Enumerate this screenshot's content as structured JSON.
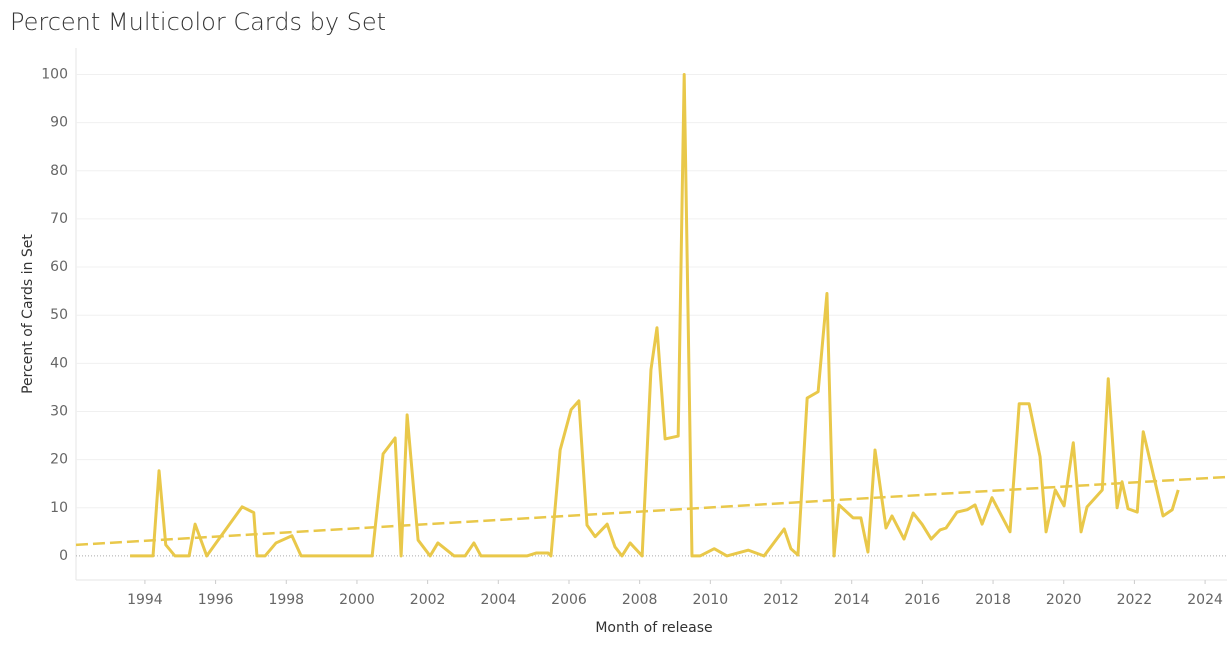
{
  "chart_data": {
    "type": "line",
    "title": "Percent Multicolor Cards by Set",
    "x_label": "Month of release",
    "y_label": "Percent of Cards in Set",
    "x": [
      1993.58,
      1994.23,
      1994.4,
      1994.59,
      1994.85,
      1995.25,
      1995.42,
      1995.75,
      1996.75,
      1997.08,
      1997.17,
      1997.4,
      1997.71,
      1998.16,
      1998.42,
      2000.43,
      2000.74,
      2001.08,
      2001.25,
      2001.42,
      2001.73,
      2002.07,
      2002.29,
      2002.75,
      2003.06,
      2003.31,
      2003.51,
      2004.81,
      2005.07,
      2005.41,
      2005.49,
      2005.75,
      2006.06,
      2006.28,
      2006.51,
      2006.74,
      2007.08,
      2007.3,
      2007.5,
      2007.73,
      2008.07,
      2008.32,
      2008.49,
      2008.72,
      2009.09,
      2009.26,
      2009.48,
      2009.71,
      2010.11,
      2010.47,
      2011.07,
      2011.52,
      2012.09,
      2012.28,
      2012.48,
      2012.74,
      2013.05,
      2013.3,
      2013.5,
      2013.64,
      2014.04,
      2014.26,
      2014.46,
      2014.66,
      2014.97,
      2015.14,
      2015.48,
      2015.74,
      2015.99,
      2016.25,
      2016.5,
      2016.67,
      2016.98,
      2017.27,
      2017.49,
      2017.69,
      2017.97,
      2018.48,
      2018.74,
      2019.02,
      2019.33,
      2019.5,
      2019.76,
      2020.01,
      2020.27,
      2020.49,
      2020.66,
      2021.09,
      2021.26,
      2021.51,
      2021.65,
      2021.82,
      2022.08,
      2022.25,
      2022.81,
      2023.07,
      2023.24
    ],
    "series": [
      {
        "color": "#e9c84a",
        "values": [
          0,
          0,
          17.7,
          2.3,
          0,
          0,
          6.6,
          0,
          10.2,
          9,
          0,
          0,
          2.7,
          4.2,
          0,
          0,
          21.2,
          24.5,
          0,
          29.3,
          3.3,
          0,
          2.7,
          0,
          0,
          2.7,
          0,
          0,
          0.6,
          0.6,
          0,
          22,
          30.4,
          32.2,
          6.4,
          4,
          6.6,
          1.9,
          0,
          2.7,
          0,
          38.7,
          47.4,
          24.3,
          24.9,
          100,
          0,
          0,
          1.5,
          0,
          1.2,
          0,
          5.6,
          1.5,
          0.2,
          32.8,
          34.1,
          54.5,
          0,
          10.6,
          7.9,
          7.9,
          0.8,
          22,
          5.8,
          8.3,
          3.5,
          8.9,
          6.6,
          3.5,
          5.4,
          5.8,
          9.1,
          9.6,
          10.6,
          6.6,
          12.1,
          5,
          31.6,
          31.6,
          20.6,
          5,
          13.7,
          10.4,
          23.5,
          5,
          10.2,
          13.7,
          36.8,
          10,
          15.4,
          9.8,
          9.1,
          25.8,
          8.3,
          9.6,
          13.7
        ]
      }
    ],
    "trend_line": {
      "x": [
        1992.05,
        2024.62
      ],
      "values": [
        2.3,
        16.4
      ],
      "color": "#e9c84a"
    },
    "xlim": [
      1992.05,
      2024.62
    ],
    "xticks": [
      1994,
      1996,
      1998,
      2000,
      2002,
      2004,
      2006,
      2008,
      2010,
      2012,
      2014,
      2016,
      2018,
      2020,
      2022,
      2024
    ],
    "ylim": [
      -5,
      105.5
    ],
    "yticks": [
      0,
      10,
      20,
      30,
      40,
      50,
      60,
      70,
      80,
      90,
      100
    ],
    "grid": true
  }
}
